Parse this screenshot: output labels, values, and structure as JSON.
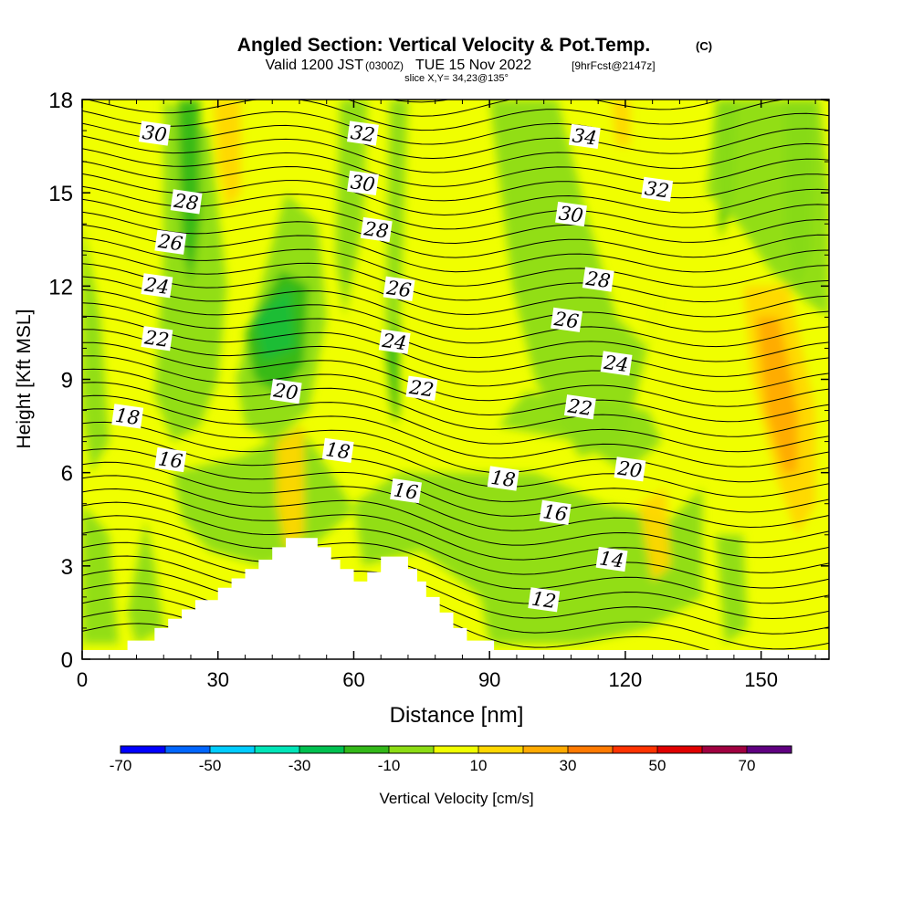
{
  "chart_data": {
    "type": "heatmap",
    "title": "Angled Section: Vertical Velocity & Pot.Temp.",
    "title_suffix": "(C)",
    "subtitle_main": "Valid 1200 JST",
    "subtitle_utc": "(0300Z)",
    "subtitle_date": "TUE 15 Nov 2022",
    "subtitle_fcst": "[9hrFcst@2147z]",
    "slice_info": "slice X,Y= 34,23@135°",
    "xlabel": "Distance [nm]",
    "ylabel": "Height [Kft MSL]",
    "xlim": [
      0,
      165
    ],
    "ylim": [
      0,
      18
    ],
    "xticks": [
      "0",
      "30",
      "60",
      "90",
      "120",
      "150"
    ],
    "yticks": [
      "0",
      "3",
      "6",
      "9",
      "12",
      "15",
      "18"
    ],
    "colorbar": {
      "label": "Vertical Velocity [cm/s]",
      "tick_labels": [
        "-70",
        "-50",
        "-30",
        "-10",
        "10",
        "30",
        "50",
        "70"
      ],
      "colors": [
        "#0000ff",
        "#0066ff",
        "#00ccff",
        "#00e5b8",
        "#00c050",
        "#33b819",
        "#8cdc14",
        "#f0ff00",
        "#ffd700",
        "#ffaa00",
        "#ff7a00",
        "#ff3300",
        "#e00000",
        "#a00040",
        "#600080"
      ]
    },
    "isentrope_values": [
      12,
      14,
      16,
      18,
      20,
      22,
      24,
      26,
      28,
      30,
      32,
      34
    ],
    "contour_labels": [
      {
        "text": "30",
        "x": 16,
        "y": 16.9
      },
      {
        "text": "32",
        "x": 62,
        "y": 16.9
      },
      {
        "text": "34",
        "x": 111,
        "y": 16.8
      },
      {
        "text": "28",
        "x": 23,
        "y": 14.7
      },
      {
        "text": "30",
        "x": 62,
        "y": 15.3
      },
      {
        "text": "32",
        "x": 127,
        "y": 15.1
      },
      {
        "text": "26",
        "x": 19.5,
        "y": 13.4
      },
      {
        "text": "28",
        "x": 65,
        "y": 13.8
      },
      {
        "text": "30",
        "x": 108,
        "y": 14.3
      },
      {
        "text": "24",
        "x": 16.5,
        "y": 12.0
      },
      {
        "text": "26",
        "x": 70,
        "y": 11.9
      },
      {
        "text": "28",
        "x": 114,
        "y": 12.2
      },
      {
        "text": "22",
        "x": 16.5,
        "y": 10.3
      },
      {
        "text": "24",
        "x": 69,
        "y": 10.2
      },
      {
        "text": "26",
        "x": 107,
        "y": 10.9
      },
      {
        "text": "24",
        "x": 118,
        "y": 9.5
      },
      {
        "text": "20",
        "x": 45,
        "y": 8.6
      },
      {
        "text": "22",
        "x": 75,
        "y": 8.7
      },
      {
        "text": "22",
        "x": 110,
        "y": 8.1
      },
      {
        "text": "18",
        "x": 10,
        "y": 7.8
      },
      {
        "text": "16",
        "x": 19.5,
        "y": 6.4
      },
      {
        "text": "18",
        "x": 56.5,
        "y": 6.7
      },
      {
        "text": "18",
        "x": 93,
        "y": 5.8
      },
      {
        "text": "20",
        "x": 121,
        "y": 6.1
      },
      {
        "text": "16",
        "x": 71.5,
        "y": 5.4
      },
      {
        "text": "16",
        "x": 104.5,
        "y": 4.7
      },
      {
        "text": "14",
        "x": 117,
        "y": 3.2
      },
      {
        "text": "12",
        "x": 102,
        "y": 1.9
      }
    ]
  }
}
